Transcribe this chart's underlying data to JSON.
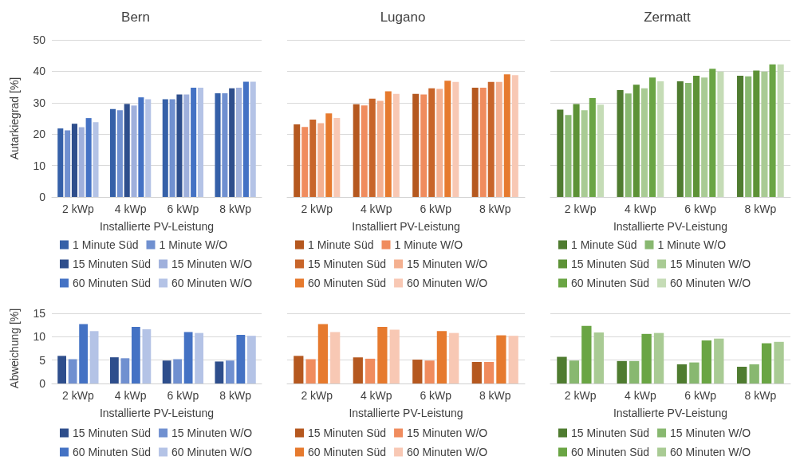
{
  "chart_data": [
    {
      "type": "bar",
      "title": "Bern",
      "xlabel": "Installierte PV-Leistung",
      "ylabel": "Autarkiegrad [%]",
      "categories": [
        "2 kWp",
        "4 kWp",
        "6 kWp",
        "8 kWp"
      ],
      "ylim": [
        0,
        50
      ],
      "yticks": [
        0,
        10,
        20,
        30,
        40,
        50
      ],
      "grid": "y",
      "legend": "bottom",
      "series": [
        {
          "name": "1 Minute Süd",
          "color": "#3560a8",
          "values": [
            21.8,
            28,
            31.1,
            33
          ]
        },
        {
          "name": "1 Minute W/O",
          "color": "#7090d0",
          "values": [
            21.2,
            27.6,
            31.1,
            33
          ]
        },
        {
          "name": "15 Minuten Süd",
          "color": "#2e4e8c",
          "values": [
            23.3,
            29.6,
            32.6,
            34.6
          ]
        },
        {
          "name": "15 Minuten W/O",
          "color": "#9fb0dc",
          "values": [
            22.2,
            29.1,
            32.6,
            34.8
          ]
        },
        {
          "name": "60 Minuten Süd",
          "color": "#4472c4",
          "values": [
            25.1,
            31.7,
            34.8,
            36.7
          ]
        },
        {
          "name": "60 Minuten W/O",
          "color": "#b4c3e6",
          "values": [
            23.8,
            31.1,
            34.8,
            36.7
          ]
        }
      ]
    },
    {
      "type": "bar",
      "title": "Lugano",
      "xlabel": "Installiert PV-Leistung",
      "categories": [
        "2 kWp",
        "4 kWp",
        "6 kWp",
        "8 kWp"
      ],
      "ylim": [
        0,
        50
      ],
      "yticks": [
        0,
        10,
        20,
        30,
        40,
        50
      ],
      "grid": "y",
      "legend": "bottom",
      "tick_labels": "x",
      "series": [
        {
          "name": "1 Minute Süd",
          "color": "#b5581f",
          "values": [
            23.1,
            29.5,
            32.8,
            34.8
          ]
        },
        {
          "name": "1 Minute W/O",
          "color": "#f08c5e",
          "values": [
            22.3,
            29.1,
            32.6,
            34.8
          ]
        },
        {
          "name": "15 Minuten Süd",
          "color": "#c8652a",
          "values": [
            24.6,
            31.3,
            34.6,
            36.6
          ]
        },
        {
          "name": "15 Minuten W/O",
          "color": "#f4b090",
          "values": [
            23.5,
            30.6,
            34.4,
            36.6
          ]
        },
        {
          "name": "60 Minuten Süd",
          "color": "#e67a2e",
          "values": [
            26.6,
            33.6,
            37,
            39
          ]
        },
        {
          "name": "60 Minuten W/O",
          "color": "#f8c8b4",
          "values": [
            25.1,
            32.8,
            36.6,
            38.8
          ]
        }
      ]
    },
    {
      "type": "bar",
      "title": "Zermatt",
      "xlabel": "Installierte PV-Leistung",
      "categories": [
        "2 kWp",
        "4 kWp",
        "6 kWp",
        "8 kWp"
      ],
      "ylim": [
        0,
        50
      ],
      "yticks": [
        0,
        10,
        20,
        30,
        40,
        50
      ],
      "grid": "y",
      "legend": "bottom",
      "tick_labels": "x",
      "series": [
        {
          "name": "1 Minute Süd",
          "color": "#4f7c30",
          "values": [
            27.8,
            34,
            36.8,
            38.6
          ]
        },
        {
          "name": "1 Minute W/O",
          "color": "#88b870",
          "values": [
            26.1,
            32.9,
            36.3,
            38.4
          ]
        },
        {
          "name": "15 Minuten Süd",
          "color": "#5d9236",
          "values": [
            29.6,
            35.7,
            38.6,
            40.2
          ]
        },
        {
          "name": "15 Minuten W/O",
          "color": "#a9cb94",
          "values": [
            27.6,
            34.6,
            38,
            39.9
          ]
        },
        {
          "name": "60 Minuten Süd",
          "color": "#6aa544",
          "values": [
            31.5,
            38,
            40.8,
            42.2
          ]
        },
        {
          "name": "60 Minuten W/O",
          "color": "#c5dcb6",
          "values": [
            29.4,
            36.8,
            39.9,
            42.2
          ]
        }
      ]
    },
    {
      "type": "bar",
      "xlabel": "Installierte PV-Leistung",
      "ylabel": "Abweichung [%]",
      "categories": [
        "2 kWp",
        "4 kWp",
        "6 kWp",
        "8 kWp"
      ],
      "ylim": [
        0,
        15
      ],
      "yticks": [
        0,
        5,
        10,
        15
      ],
      "grid": "y",
      "legend": "bottom",
      "series": [
        {
          "name": "15 Minuten Süd",
          "color": "#2e4e8c",
          "values": [
            5.9,
            5.6,
            4.9,
            4.7
          ]
        },
        {
          "name": "15 Minuten W/O",
          "color": "#7090d0",
          "values": [
            5.2,
            5.4,
            5.2,
            4.9
          ]
        },
        {
          "name": "60 Minuten Süd",
          "color": "#4472c4",
          "values": [
            12.7,
            12.1,
            11,
            10.4
          ]
        },
        {
          "name": "60 Minuten W/O",
          "color": "#b4c3e6",
          "values": [
            11.2,
            11.6,
            10.8,
            10.2
          ]
        }
      ]
    },
    {
      "type": "bar",
      "xlabel": "Installierte PV-Leistung",
      "categories": [
        "2 kWp",
        "4 kWp",
        "6 kWp",
        "8 kWp"
      ],
      "ylim": [
        0,
        15
      ],
      "yticks": [
        0,
        5,
        10,
        15
      ],
      "grid": "y",
      "legend": "bottom",
      "tick_labels": "x",
      "series": [
        {
          "name": "15 Minuten Süd",
          "color": "#b5581f",
          "values": [
            5.9,
            5.6,
            5.1,
            4.6
          ]
        },
        {
          "name": "15 Minuten W/O",
          "color": "#f08c5e",
          "values": [
            5.2,
            5.3,
            4.9,
            4.6
          ]
        },
        {
          "name": "60 Minuten Süd",
          "color": "#e67a2e",
          "values": [
            12.7,
            12.1,
            11.2,
            10.3
          ]
        },
        {
          "name": "60 Minuten W/O",
          "color": "#f8c8b4",
          "values": [
            11,
            11.5,
            10.8,
            10.2
          ]
        }
      ]
    },
    {
      "type": "bar",
      "xlabel": "Installierte PV-Leistung",
      "categories": [
        "2 kWp",
        "4 kWp",
        "6 kWp",
        "8 kWp"
      ],
      "ylim": [
        0,
        15
      ],
      "yticks": [
        0,
        5,
        10,
        15
      ],
      "grid": "y",
      "legend": "bottom",
      "tick_labels": "x",
      "series": [
        {
          "name": "15 Minuten Süd",
          "color": "#4f7c30",
          "values": [
            5.7,
            4.8,
            4.1,
            3.6
          ]
        },
        {
          "name": "15 Minuten W/O",
          "color": "#88b870",
          "values": [
            4.9,
            4.8,
            4.5,
            4.1
          ]
        },
        {
          "name": "60 Minuten Süd",
          "color": "#6aa544",
          "values": [
            12.3,
            10.6,
            9.2,
            8.6
          ]
        },
        {
          "name": "60 Minuten W/O",
          "color": "#a9cb94",
          "values": [
            10.9,
            10.8,
            9.6,
            8.9
          ]
        }
      ]
    }
  ]
}
